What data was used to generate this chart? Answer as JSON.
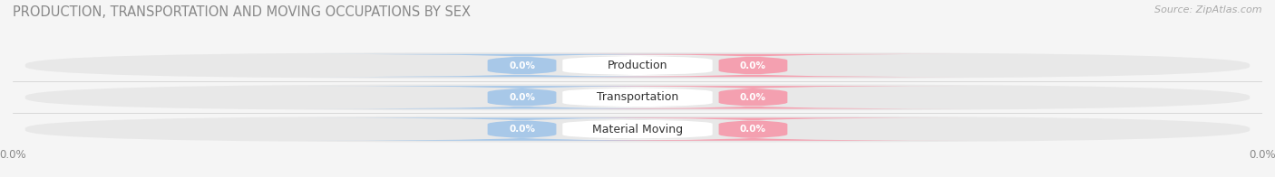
{
  "title": "PRODUCTION, TRANSPORTATION AND MOVING OCCUPATIONS BY SEX",
  "source_text": "Source: ZipAtlas.com",
  "categories": [
    "Production",
    "Transportation",
    "Material Moving"
  ],
  "male_color": "#a8c8e8",
  "female_color": "#f4a0b0",
  "bar_bg_color": "#e8e8e8",
  "bar_row_bg": "#efefef",
  "title_fontsize": 10.5,
  "source_fontsize": 8,
  "bar_label_fontsize": 7.5,
  "category_fontsize": 9,
  "legend_fontsize": 9,
  "figsize": [
    14.06,
    1.96
  ],
  "dpi": 100,
  "fig_bg": "#f5f5f5"
}
